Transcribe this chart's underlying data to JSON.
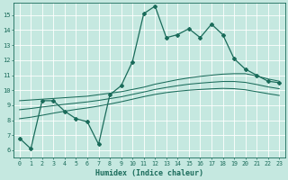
{
  "xlabel": "Humidex (Indice chaleur)",
  "ylabel": "",
  "background_color": "#c5e8e0",
  "line_color": "#1a6b5a",
  "xlim": [
    -0.5,
    23.5
  ],
  "ylim": [
    5.5,
    15.8
  ],
  "yticks": [
    6,
    7,
    8,
    9,
    10,
    11,
    12,
    13,
    14,
    15
  ],
  "xticks": [
    0,
    1,
    2,
    3,
    4,
    5,
    6,
    7,
    8,
    9,
    10,
    11,
    12,
    13,
    14,
    15,
    16,
    17,
    18,
    19,
    20,
    21,
    22,
    23
  ],
  "main_line_x": [
    0,
    1,
    2,
    3,
    4,
    5,
    6,
    7,
    8,
    9,
    10,
    11,
    12,
    13,
    14,
    15,
    16,
    17,
    18,
    19,
    20,
    21,
    22,
    23
  ],
  "main_line_y": [
    6.8,
    6.1,
    9.3,
    9.3,
    8.6,
    8.1,
    7.9,
    6.4,
    9.7,
    10.3,
    11.9,
    15.1,
    15.6,
    13.5,
    13.7,
    14.1,
    13.5,
    14.4,
    13.7,
    12.1,
    11.4,
    11.0,
    10.6,
    10.5
  ],
  "smooth_line1_x": [
    0,
    1,
    2,
    3,
    4,
    5,
    6,
    7,
    8,
    9,
    10,
    11,
    12,
    13,
    14,
    15,
    16,
    17,
    18,
    19,
    20,
    21,
    22,
    23
  ],
  "smooth_line1_y": [
    9.3,
    9.35,
    9.4,
    9.45,
    9.5,
    9.55,
    9.6,
    9.7,
    9.8,
    9.9,
    10.05,
    10.2,
    10.4,
    10.55,
    10.7,
    10.82,
    10.92,
    11.0,
    11.07,
    11.1,
    11.1,
    10.95,
    10.75,
    10.6
  ],
  "smooth_line2_x": [
    0,
    1,
    2,
    3,
    4,
    5,
    6,
    7,
    8,
    9,
    10,
    11,
    12,
    13,
    14,
    15,
    16,
    17,
    18,
    19,
    20,
    21,
    22,
    23
  ],
  "smooth_line2_y": [
    8.7,
    8.78,
    8.88,
    8.97,
    9.06,
    9.14,
    9.22,
    9.32,
    9.44,
    9.56,
    9.72,
    9.88,
    10.05,
    10.18,
    10.3,
    10.4,
    10.47,
    10.53,
    10.58,
    10.58,
    10.52,
    10.38,
    10.22,
    10.1
  ],
  "smooth_line3_x": [
    0,
    1,
    2,
    3,
    4,
    5,
    6,
    7,
    8,
    9,
    10,
    11,
    12,
    13,
    14,
    15,
    16,
    17,
    18,
    19,
    20,
    21,
    22,
    23
  ],
  "smooth_line3_y": [
    8.1,
    8.2,
    8.33,
    8.47,
    8.6,
    8.72,
    8.82,
    8.94,
    9.08,
    9.23,
    9.4,
    9.57,
    9.72,
    9.84,
    9.93,
    10.0,
    10.05,
    10.09,
    10.12,
    10.1,
    10.03,
    9.9,
    9.77,
    9.65
  ]
}
